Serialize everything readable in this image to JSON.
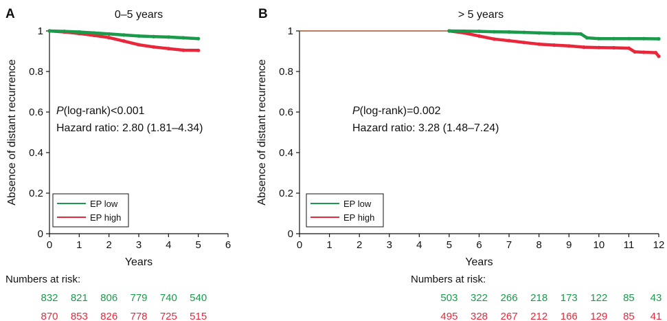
{
  "colors": {
    "ep_low": "#1a9a4a",
    "ep_high": "#e8283a",
    "pre_window": "#a0522d",
    "axis": "#111111"
  },
  "chart_data": [
    {
      "type": "line",
      "panel_label": "A",
      "subtitle": "0–5 years",
      "xlabel": "Years",
      "ylabel": "Absence of distant recurrence",
      "xlim": [
        0,
        6
      ],
      "ylim": [
        0,
        1
      ],
      "x_ticks": [
        "0",
        "1",
        "2",
        "3",
        "4",
        "5",
        "6"
      ],
      "y_ticks": [
        "0",
        "0.2",
        "0.4",
        "0.6",
        "0.8",
        "1"
      ],
      "annotation": {
        "p_symbol": "P",
        "p_text": "(log-rank)<0.001",
        "hazard": "Hazard ratio: 2.80 (1.81–4.34)"
      },
      "legend": {
        "position": "bottom-left",
        "items": [
          "EP low",
          "EP high"
        ]
      },
      "series": [
        {
          "name": "EP low",
          "color": "#1a9a4a",
          "x": [
            0,
            0.5,
            1,
            1.5,
            2,
            2.5,
            3,
            3.5,
            4,
            4.5,
            5
          ],
          "y": [
            1.0,
            0.998,
            0.995,
            0.99,
            0.985,
            0.98,
            0.975,
            0.972,
            0.97,
            0.966,
            0.962
          ]
        },
        {
          "name": "EP high",
          "color": "#e8283a",
          "x": [
            0,
            0.5,
            1,
            1.5,
            2,
            2.5,
            3,
            3.5,
            4,
            4.5,
            5
          ],
          "y": [
            1.0,
            0.995,
            0.987,
            0.978,
            0.967,
            0.95,
            0.932,
            0.921,
            0.913,
            0.905,
            0.904
          ]
        }
      ],
      "risk_label": "Numbers at risk:",
      "risk_rows": [
        {
          "name": "EP low",
          "values": [
            "832",
            "821",
            "806",
            "779",
            "740",
            "540"
          ]
        },
        {
          "name": "EP high",
          "values": [
            "870",
            "853",
            "826",
            "778",
            "725",
            "515"
          ]
        }
      ]
    },
    {
      "type": "line",
      "panel_label": "B",
      "subtitle": "> 5 years",
      "xlabel": "Years",
      "ylabel": "Absence of distant recurrence",
      "xlim": [
        0,
        12
      ],
      "ylim": [
        0,
        1
      ],
      "x_ticks": [
        "0",
        "1",
        "2",
        "3",
        "4",
        "5",
        "6",
        "7",
        "8",
        "9",
        "10",
        "11",
        "12"
      ],
      "y_ticks": [
        "0",
        "0.2",
        "0.4",
        "0.6",
        "0.8",
        "1"
      ],
      "annotation": {
        "p_symbol": "P",
        "p_text": "(log-rank)=0.002",
        "hazard": "Hazard ratio: 3.28 (1.48–7.24)"
      },
      "legend": {
        "position": "bottom-left",
        "items": [
          "EP low",
          "EP high"
        ]
      },
      "series": [
        {
          "name": "EP low",
          "color": "#1a9a4a",
          "x": [
            5,
            5.5,
            6,
            6.5,
            7,
            7.5,
            8,
            8.5,
            9,
            9.4,
            9.6,
            10,
            10.5,
            11,
            11.5,
            12
          ],
          "y": [
            1.0,
            0.999,
            0.998,
            0.996,
            0.995,
            0.993,
            0.99,
            0.988,
            0.987,
            0.985,
            0.966,
            0.962,
            0.962,
            0.962,
            0.962,
            0.961
          ]
        },
        {
          "name": "EP high",
          "color": "#e8283a",
          "x": [
            5,
            5.5,
            6,
            6.5,
            7,
            7.5,
            8,
            8.5,
            9,
            9.5,
            10,
            10.5,
            11,
            11.2,
            11.5,
            11.9,
            12
          ],
          "y": [
            1.0,
            0.99,
            0.975,
            0.96,
            0.952,
            0.943,
            0.935,
            0.93,
            0.926,
            0.92,
            0.918,
            0.917,
            0.915,
            0.897,
            0.895,
            0.893,
            0.875
          ]
        }
      ],
      "risk_label": "Numbers at risk:",
      "risk_rows": [
        {
          "name": "EP low",
          "values": [
            "503",
            "322",
            "266",
            "218",
            "173",
            "122",
            "85",
            "43"
          ]
        },
        {
          "name": "EP high",
          "values": [
            "495",
            "328",
            "267",
            "212",
            "166",
            "129",
            "85",
            "41"
          ]
        }
      ]
    }
  ]
}
